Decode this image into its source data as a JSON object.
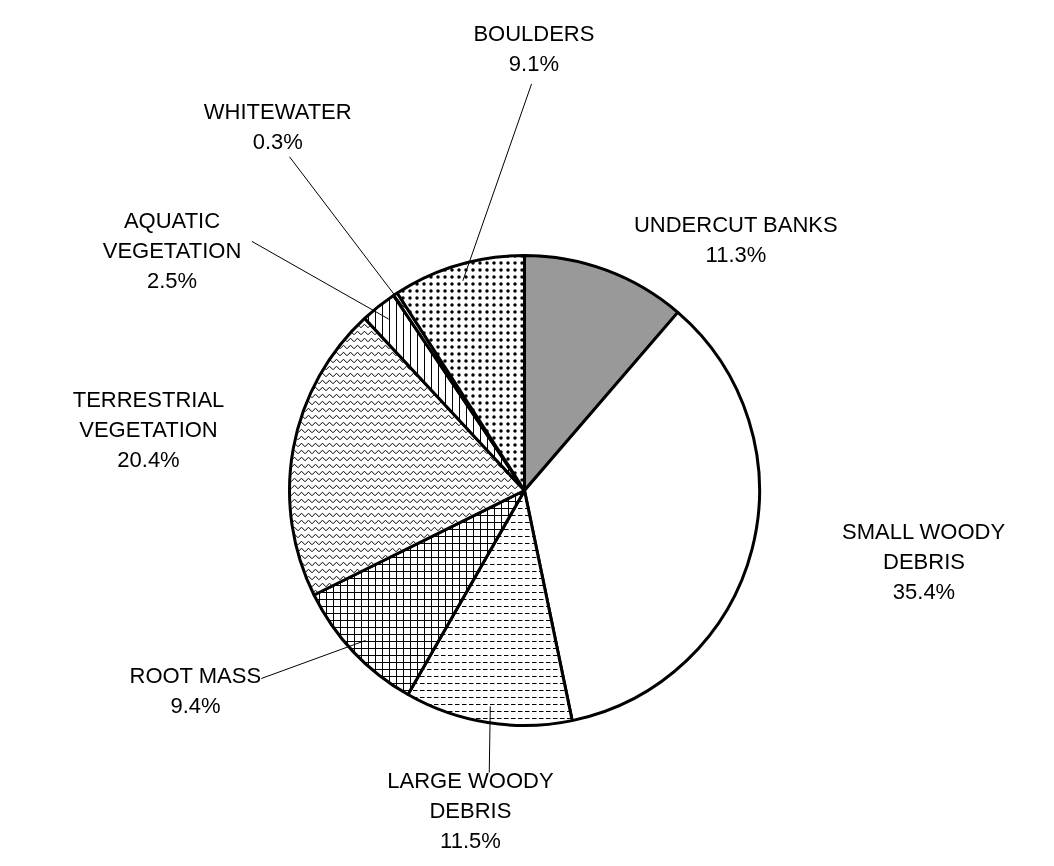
{
  "chart_data": {
    "type": "pie",
    "categories": [
      "UNDERCUT BANKS",
      "SMALL WOODY DEBRIS",
      "LARGE WOODY DEBRIS",
      "ROOT MASS",
      "TERRESTRIAL VEGETATION",
      "AQUATIC VEGETATION",
      "WHITEWATER",
      "BOULDERS"
    ],
    "values": [
      11.3,
      35.4,
      11.5,
      9.4,
      20.4,
      2.5,
      0.3,
      9.1
    ],
    "value_labels": [
      "11.3%",
      "35.4%",
      "11.5%",
      "9.4%",
      "20.4%",
      "2.5%",
      "0.3%",
      "9.1%"
    ],
    "colors": [
      "#999999",
      "#ffffff",
      "#ffffff",
      "#ffffff",
      "#ffffff",
      "#ffffff",
      "#ffffff",
      "#ffffff"
    ]
  }
}
